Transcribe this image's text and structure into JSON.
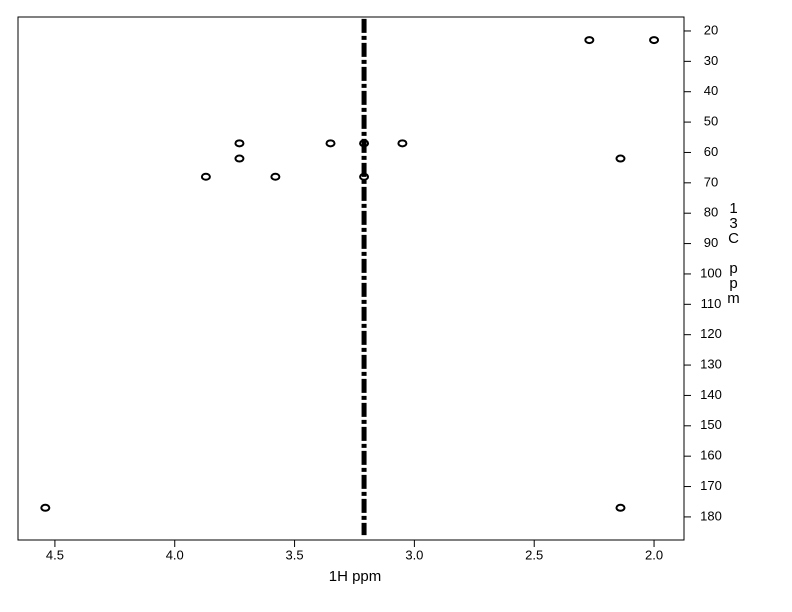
{
  "chart_data": {
    "type": "scatter",
    "x_label": "1H ppm",
    "y_label": "13C ppm",
    "x": [
      2.27,
      2.0,
      3.73,
      3.35,
      3.21,
      3.05,
      3.73,
      2.14,
      3.87,
      3.58,
      3.21,
      4.54,
      2.14
    ],
    "y": [
      23,
      23,
      57,
      57,
      57,
      57,
      62,
      62,
      68,
      68,
      68,
      177,
      177
    ],
    "ridge": {
      "x": [
        3.21,
        3.21
      ],
      "y": [
        16,
        186
      ]
    },
    "color": "#000000",
    "xlim": [
      4.654,
      1.875
    ],
    "ylim": [
      15.4,
      187.6
    ],
    "xticks": [
      4.5,
      {
        "value": 4,
        "label": "4.0"
      },
      3.5,
      {
        "value": 3,
        "label": "3.0"
      },
      2.5,
      {
        "value": 2,
        "label": "2.0"
      }
    ],
    "yticks": [
      20,
      30,
      40,
      50,
      60,
      70,
      80,
      90,
      100,
      110,
      120,
      130,
      140,
      150,
      160,
      170,
      180
    ]
  }
}
